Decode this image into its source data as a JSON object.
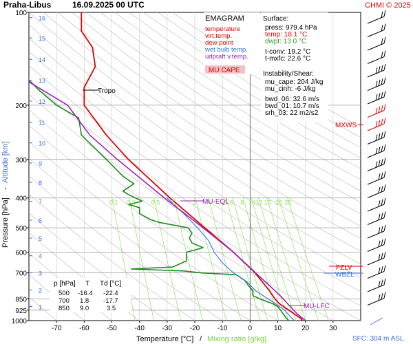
{
  "header": {
    "station": "Praha-Libus",
    "datetime": "16.09.2025 00 UTC",
    "credit": "CHMI © 2025"
  },
  "axes": {
    "x_title_temp": "Temperature [°C]",
    "x_title_sep": "/",
    "x_title_mix": "Mixing ratio [g/kg]",
    "y_title_pressure": "Pressure [hPa]",
    "y_title_sep": "-",
    "y_title_alt": "Altitude [km]",
    "sfc": "SFC: 304 m ASL"
  },
  "legend": {
    "title": "EMAGRAM",
    "items": [
      {
        "label": "temperature",
        "color": "#e00000"
      },
      {
        "label": "virt.temp.",
        "color": "#e00000"
      },
      {
        "label": "dew point",
        "color": "#e00000"
      },
      {
        "label": "wet bulb temp.",
        "color": "#3a6ee8"
      },
      {
        "label": "udpraft v.temp.",
        "color": "#9b1fb5"
      }
    ],
    "mucape_label": "MU CAPE"
  },
  "surface": {
    "title": "Surface:",
    "press": "press: 979.4 hPa",
    "temp": "temp: 18.1 °C",
    "dwpt": "dwpt: 13.0 °C",
    "tconv": "t-conv: 19.2 °C",
    "tmxfc": "t-mxfc: 22.6 °C"
  },
  "instability": {
    "title": "Instability/Shear:",
    "lines": [
      "mu_cape: 204 J/kg",
      "mu_cinh: -6 J/kg",
      "",
      "bwd_06: 32.6 m/s",
      "bwd_01: 10.7 m/s",
      "srh_03: 22 m2/s2"
    ]
  },
  "table": {
    "headers": [
      "p [hPa]",
      "T",
      "Td [°C]"
    ],
    "rows": [
      [
        "500",
        "-16.4",
        "-22.4"
      ],
      [
        "700",
        "1.8",
        "-17.7"
      ],
      [
        "850",
        "9.0",
        "3.5"
      ]
    ]
  },
  "labels": {
    "tropo": "Tropo",
    "mu_eql": "MU-EQL",
    "mu_lfc": "MU-LFC",
    "fzl": "FZLV",
    "wbz": "WBZL",
    "mxws": "MXWS"
  },
  "chart_data": {
    "type": "line",
    "diagram": "emagram",
    "xlim": [
      -80,
      40
    ],
    "ylim": [
      1000,
      100
    ],
    "y_scale": "log",
    "x_ticks": [
      -70,
      -60,
      -50,
      -40,
      -30,
      -20,
      -10,
      0,
      10,
      20,
      30
    ],
    "pressure_ticks": [
      100,
      200,
      300,
      400,
      500,
      600,
      700,
      850,
      925,
      1000
    ],
    "altitude_ticks_km": [
      {
        "km": 1,
        "p": 900
      },
      {
        "km": 2,
        "p": 795
      },
      {
        "km": 3,
        "p": 700
      },
      {
        "km": 4,
        "p": 616
      },
      {
        "km": 5,
        "p": 540
      },
      {
        "km": 6,
        "p": 472
      },
      {
        "km": 7,
        "p": 410
      },
      {
        "km": 8,
        "p": 356
      },
      {
        "km": 9,
        "p": 308
      },
      {
        "km": 10,
        "p": 265
      },
      {
        "km": 11,
        "p": 227
      },
      {
        "km": 12,
        "p": 194
      },
      {
        "km": 13,
        "p": 166
      },
      {
        "km": 14,
        "p": 142
      },
      {
        "km": 15,
        "p": 121
      },
      {
        "km": 16,
        "p": 104
      }
    ],
    "mixing_ratio_labels": [
      "0.1",
      "0.2",
      "0.5",
      "1",
      "2",
      "3",
      "5",
      "6",
      "8",
      "10",
      "12",
      "15",
      "20",
      "25"
    ],
    "mixing_ratio_values": [
      0.1,
      0.2,
      0.5,
      1,
      2,
      3,
      5,
      6,
      8,
      10,
      12,
      15,
      20,
      25
    ],
    "series": [
      {
        "name": "temperature",
        "color": "#e00000",
        "points": [
          [
            1000,
            19
          ],
          [
            980,
            18.1
          ],
          [
            925,
            14
          ],
          [
            880,
            10.5
          ],
          [
            850,
            9
          ],
          [
            800,
            7
          ],
          [
            700,
            1.8
          ],
          [
            600,
            -6
          ],
          [
            500,
            -16.4
          ],
          [
            400,
            -29
          ],
          [
            300,
            -44
          ],
          [
            250,
            -52
          ],
          [
            200,
            -60
          ],
          [
            175,
            -60
          ],
          [
            150,
            -56
          ],
          [
            130,
            -57
          ],
          [
            115,
            -61
          ],
          [
            100,
            -61
          ]
        ]
      },
      {
        "name": "dew point",
        "color": "#e00000",
        "points": [
          [
            1000,
            14
          ],
          [
            980,
            13.0
          ],
          [
            925,
            11
          ],
          [
            900,
            10
          ],
          [
            880,
            8
          ],
          [
            850,
            3.5
          ],
          [
            830,
            1
          ],
          [
            800,
            1
          ],
          [
            760,
            -1
          ],
          [
            740,
            -2
          ],
          [
            720,
            -4
          ],
          [
            710,
            -5
          ],
          [
            700,
            -17.7
          ],
          [
            690,
            -24
          ],
          [
            680,
            -43
          ],
          [
            670,
            -28
          ],
          [
            640,
            -23
          ],
          [
            600,
            -23
          ],
          [
            580,
            -17
          ],
          [
            560,
            -21
          ],
          [
            540,
            -22
          ],
          [
            520,
            -21
          ],
          [
            500,
            -22.4
          ],
          [
            480,
            -33
          ],
          [
            470,
            -36
          ],
          [
            450,
            -40
          ],
          [
            430,
            -40
          ],
          [
            420,
            -44
          ],
          [
            410,
            -39
          ],
          [
            390,
            -44
          ],
          [
            380,
            -46
          ],
          [
            360,
            -42
          ],
          [
            340,
            -46
          ],
          [
            300,
            -52
          ],
          [
            250,
            -61
          ],
          [
            220,
            -62
          ],
          [
            200,
            -70
          ],
          [
            180,
            -76
          ],
          [
            166,
            -80
          ]
        ]
      },
      {
        "name": "wet bulb temp.",
        "color": "#3a6ee8",
        "points": [
          [
            1000,
            16
          ],
          [
            980,
            15
          ],
          [
            925,
            12.5
          ],
          [
            880,
            9
          ],
          [
            850,
            6.5
          ],
          [
            800,
            2
          ],
          [
            750,
            -1
          ],
          [
            700,
            -6
          ],
          [
            650,
            -10
          ],
          [
            600,
            -13
          ],
          [
            550,
            -15
          ],
          [
            500,
            -19
          ],
          [
            450,
            -24
          ],
          [
            400,
            -30
          ]
        ]
      },
      {
        "name": "udpraft v.temp.",
        "color": "#9b1fb5",
        "points": [
          [
            1000,
            20
          ],
          [
            950,
            17
          ],
          [
            900,
            14.5
          ],
          [
            850,
            12
          ],
          [
            800,
            9
          ],
          [
            700,
            2
          ],
          [
            600,
            -6
          ],
          [
            500,
            -17
          ],
          [
            400,
            -31
          ],
          [
            300,
            -48
          ],
          [
            250,
            -58
          ],
          [
            200,
            -66
          ],
          [
            166,
            -81
          ]
        ]
      }
    ],
    "wind_barbs": "right-side column",
    "legend_position": "top-right inside plot"
  }
}
